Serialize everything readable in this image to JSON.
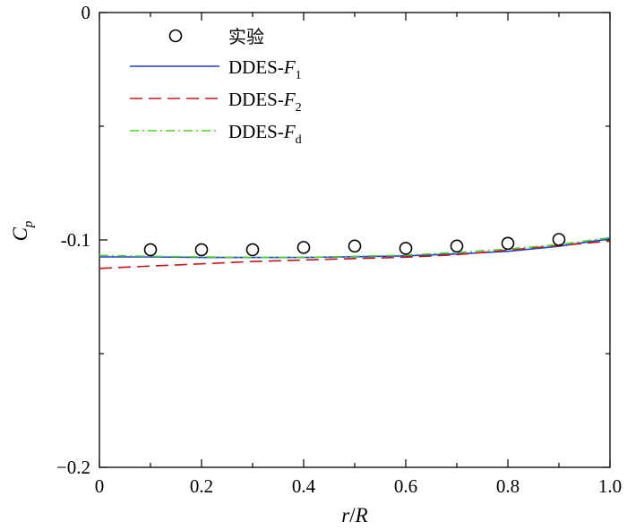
{
  "chart_data": {
    "type": "line",
    "xlim": [
      0,
      1.0
    ],
    "ylim": [
      -0.2,
      0
    ],
    "x_ticks": [
      "0",
      "0.2",
      "0.4",
      "0.6",
      "0.8",
      "1.0"
    ],
    "y_ticks": [
      "0",
      "-0.1",
      "−0.2"
    ],
    "xlabel": {
      "italic1": "r",
      "sep": "/",
      "italic2": "R"
    },
    "ylabel": {
      "main": "C",
      "sub": "p"
    },
    "grid": false,
    "legend_position": "top-left",
    "experiment": {
      "name": "实验",
      "marker": "open-circle",
      "x": [
        0.1,
        0.2,
        0.3,
        0.4,
        0.5,
        0.6,
        0.7,
        0.8,
        0.9
      ],
      "y": [
        -0.1043,
        -0.1043,
        -0.1043,
        -0.1033,
        -0.1027,
        -0.1037,
        -0.1027,
        -0.1015,
        -0.0998
      ]
    },
    "series": [
      {
        "label_prefix": "DDES-",
        "label_italic": "F",
        "label_sub": "1",
        "color": "#1f3fd6",
        "dash": "solid",
        "x": [
          0.0,
          0.1,
          0.2,
          0.3,
          0.4,
          0.5,
          0.6,
          0.7,
          0.8,
          0.9,
          1.0
        ],
        "y": [
          -0.1075,
          -0.1075,
          -0.1077,
          -0.1077,
          -0.1077,
          -0.1074,
          -0.107,
          -0.1062,
          -0.105,
          -0.1028,
          -0.0995
        ]
      },
      {
        "label_prefix": "DDES-",
        "label_italic": "F",
        "label_sub": "2",
        "color": "#c0171c",
        "dash": "long-dash",
        "x": [
          0.0,
          0.1,
          0.2,
          0.3,
          0.4,
          0.5,
          0.6,
          0.7,
          0.8,
          0.9,
          1.0
        ],
        "y": [
          -0.1125,
          -0.1115,
          -0.1105,
          -0.1095,
          -0.1088,
          -0.1082,
          -0.1076,
          -0.1065,
          -0.1045,
          -0.1025,
          -0.1005
        ]
      },
      {
        "label_prefix": "DDES-",
        "label_italic": "F",
        "label_sub": "d",
        "color": "#4ccf28",
        "dash": "dash-dot",
        "x": [
          0.0,
          0.1,
          0.2,
          0.3,
          0.4,
          0.5,
          0.6,
          0.7,
          0.8,
          0.9,
          1.0
        ],
        "y": [
          -0.1068,
          -0.1072,
          -0.1075,
          -0.1077,
          -0.1077,
          -0.1072,
          -0.1067,
          -0.1055,
          -0.104,
          -0.102,
          -0.099
        ]
      }
    ]
  }
}
